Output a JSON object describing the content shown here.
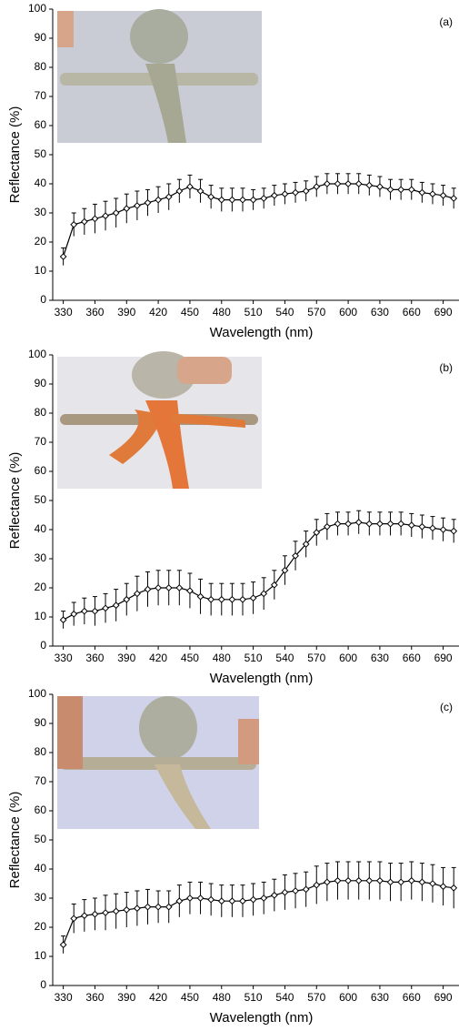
{
  "chart_data": [
    {
      "type": "line",
      "label": "(a)",
      "x_label": "Wavelength (nm)",
      "y_label": "Reflectance (%)",
      "color": "#000000",
      "x": [
        330,
        340,
        350,
        360,
        370,
        380,
        390,
        400,
        410,
        420,
        430,
        440,
        450,
        460,
        470,
        480,
        490,
        500,
        510,
        520,
        530,
        540,
        550,
        560,
        570,
        580,
        590,
        600,
        610,
        620,
        630,
        640,
        650,
        660,
        670,
        680,
        690,
        700
      ],
      "values": [
        15,
        26,
        27,
        28,
        29,
        30,
        31.5,
        32.5,
        33.5,
        34.5,
        35.5,
        37.5,
        39,
        37.5,
        35.5,
        34.5,
        34.5,
        34.5,
        34.5,
        35,
        36,
        36.5,
        37,
        37.5,
        39,
        40,
        40,
        40,
        40,
        39.5,
        39,
        38,
        38,
        38,
        37,
        36.5,
        36,
        35
      ],
      "errors": [
        3,
        4,
        4.5,
        5,
        5,
        5,
        5,
        5,
        4.5,
        4.5,
        4.5,
        4,
        4,
        4,
        4,
        4,
        4,
        4,
        3.5,
        3.5,
        3.5,
        3.5,
        3.5,
        3.5,
        3.5,
        3.5,
        3.5,
        3.5,
        3.5,
        3.5,
        3.5,
        3.5,
        3.5,
        3.5,
        3.5,
        3.5,
        3.5,
        3.5
      ],
      "xlim": [
        320,
        705
      ],
      "ylim": [
        0,
        100
      ],
      "xticks": [
        330,
        360,
        390,
        420,
        450,
        480,
        510,
        540,
        570,
        600,
        630,
        660,
        690
      ],
      "yticks": [
        0,
        10,
        20,
        30,
        40,
        50,
        60,
        70,
        80,
        90,
        100
      ]
    },
    {
      "type": "line",
      "label": "(b)",
      "x_label": "Wavelength (nm)",
      "y_label": "Reflectance (%)",
      "color": "#000000",
      "x": [
        330,
        340,
        350,
        360,
        370,
        380,
        390,
        400,
        410,
        420,
        430,
        440,
        450,
        460,
        470,
        480,
        490,
        500,
        510,
        520,
        530,
        540,
        550,
        560,
        570,
        580,
        590,
        600,
        610,
        620,
        630,
        640,
        650,
        660,
        670,
        680,
        690,
        700
      ],
      "values": [
        9,
        11,
        12,
        12,
        13,
        14,
        16,
        18,
        19.5,
        20,
        20,
        20,
        19,
        17,
        16,
        16,
        16,
        16,
        16.5,
        18,
        21,
        26,
        31,
        35,
        39,
        41,
        42,
        42,
        42.5,
        42,
        42,
        42,
        42,
        41.5,
        41,
        40.5,
        40,
        39.5
      ],
      "errors": [
        3,
        4,
        4.5,
        5,
        5,
        5.5,
        5.5,
        6,
        6,
        6,
        6,
        6,
        6,
        6,
        5.5,
        5.5,
        5.5,
        5.5,
        5.5,
        5.5,
        5,
        5,
        5,
        4.5,
        4.5,
        4.5,
        4,
        4,
        4,
        4,
        4,
        4,
        4,
        4,
        4,
        4,
        4,
        4
      ],
      "xlim": [
        320,
        705
      ],
      "ylim": [
        0,
        100
      ],
      "xticks": [
        330,
        360,
        390,
        420,
        450,
        480,
        510,
        540,
        570,
        600,
        630,
        660,
        690
      ],
      "yticks": [
        0,
        10,
        20,
        30,
        40,
        50,
        60,
        70,
        80,
        90,
        100
      ]
    },
    {
      "type": "line",
      "label": "(c)",
      "x_label": "Wavelength (nm)",
      "y_label": "Reflectance (%)",
      "color": "#000000",
      "x": [
        330,
        340,
        350,
        360,
        370,
        380,
        390,
        400,
        410,
        420,
        430,
        440,
        450,
        460,
        470,
        480,
        490,
        500,
        510,
        520,
        530,
        540,
        550,
        560,
        570,
        580,
        590,
        600,
        610,
        620,
        630,
        640,
        650,
        660,
        670,
        680,
        690,
        700
      ],
      "values": [
        14,
        23,
        24,
        24.5,
        25,
        25.5,
        26,
        26.5,
        27,
        27,
        27,
        29,
        30,
        30,
        29.5,
        29,
        29,
        29,
        29.5,
        30,
        31,
        32,
        32.5,
        33,
        34.5,
        35.5,
        36,
        36,
        36,
        36,
        36,
        35.5,
        35.5,
        36,
        35.5,
        35,
        34,
        33.5
      ],
      "errors": [
        3,
        5,
        5.5,
        5.5,
        6,
        6,
        6,
        6,
        6,
        5.5,
        5.5,
        5.5,
        5.5,
        5.5,
        5.5,
        5.5,
        5.5,
        5.5,
        5.5,
        5.5,
        5.5,
        6,
        6,
        6,
        6.5,
        6.5,
        6.5,
        6.5,
        6.5,
        6.5,
        6.5,
        6.5,
        6.5,
        6.5,
        6.5,
        6.5,
        6.5,
        7
      ],
      "xlim": [
        320,
        705
      ],
      "ylim": [
        0,
        100
      ],
      "xticks": [
        330,
        360,
        390,
        420,
        450,
        480,
        510,
        540,
        570,
        600,
        630,
        660,
        690
      ],
      "yticks": [
        0,
        10,
        20,
        30,
        40,
        50,
        60,
        70,
        80,
        90,
        100
      ]
    }
  ]
}
